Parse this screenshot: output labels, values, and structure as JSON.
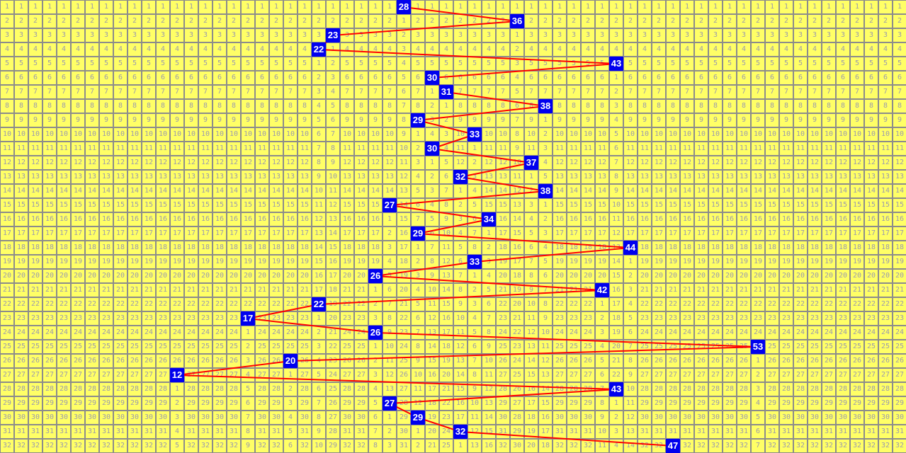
{
  "chart_data": {
    "type": "table",
    "description_of_cells": "",
    "number_columns": [
      0,
      63
    ],
    "rows": [
      1,
      32
    ],
    "hits": [
      28,
      36,
      23,
      22,
      43,
      30,
      31,
      38,
      29,
      33,
      30,
      37,
      32,
      38,
      27,
      34,
      29,
      44,
      33,
      26,
      42,
      22,
      17,
      26,
      53,
      20,
      12,
      43,
      27,
      29,
      32,
      47
    ],
    "colors": {
      "cell": "#ffff66",
      "grid": "#8c8c8c",
      "text": "#9a9aae",
      "hit": "#0000ee",
      "hit_text": "#ffffff",
      "line": "#ff0000"
    }
  }
}
